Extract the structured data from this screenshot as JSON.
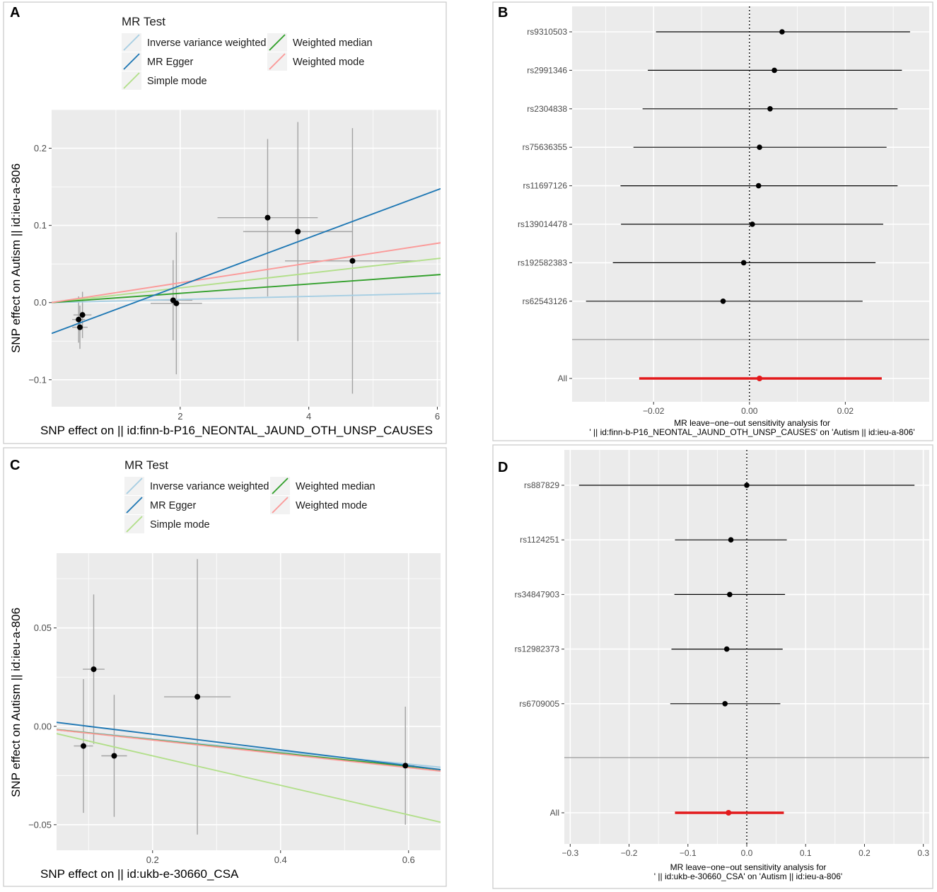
{
  "chart_data": [
    {
      "panel": "A",
      "type": "scatter",
      "legend_title": "MR Test",
      "legend": [
        {
          "name": "Inverse variance weighted",
          "color": "#a6cee3"
        },
        {
          "name": "MR Egger",
          "color": "#1f78b4"
        },
        {
          "name": "Simple mode",
          "color": "#b2df8a"
        },
        {
          "name": "Weighted median",
          "color": "#33a02c"
        },
        {
          "name": "Weighted mode",
          "color": "#fb9a99"
        }
      ],
      "xlabel": "SNP effect on  || id:finn-b-P16_NEONTAL_JAUND_OTH_UNSP_CAUSES",
      "ylabel": "SNP effect on Autism || id:ieu-a-806",
      "xlim": [
        0,
        6.05
      ],
      "ylim": [
        -0.135,
        0.25
      ],
      "xticks": [
        2,
        4,
        6
      ],
      "yticks": [
        -0.1,
        0.0,
        0.1,
        0.2
      ],
      "xtick_labels": [
        "2",
        "4",
        "6"
      ],
      "ytick_labels": [
        "−0.1",
        "0.0",
        "0.1",
        "0.2"
      ],
      "points": [
        {
          "x": 0.42,
          "y": -0.022,
          "xerr": 0.1,
          "yerr": 0.03
        },
        {
          "x": 0.48,
          "y": -0.016,
          "xerr": 0.14,
          "yerr": 0.03
        },
        {
          "x": 0.44,
          "y": -0.032,
          "xerr": 0.12,
          "yerr": 0.028
        },
        {
          "x": 1.89,
          "y": 0.003,
          "xerr": 0.3,
          "yerr": 0.052
        },
        {
          "x": 1.94,
          "y": -0.001,
          "xerr": 0.4,
          "yerr": 0.092
        },
        {
          "x": 3.36,
          "y": 0.11,
          "xerr": 0.78,
          "yerr": 0.102
        },
        {
          "x": 3.83,
          "y": 0.092,
          "xerr": 0.85,
          "yerr": 0.142
        },
        {
          "x": 4.68,
          "y": 0.054,
          "xerr": 1.05,
          "yerr": 0.172
        }
      ],
      "lines": [
        {
          "name": "Inverse variance weighted",
          "intercept": 0.0,
          "slope": 0.002
        },
        {
          "name": "MR Egger",
          "intercept": -0.04,
          "slope": 0.031
        },
        {
          "name": "Simple mode",
          "intercept": 0.0,
          "slope": 0.0095
        },
        {
          "name": "Weighted median",
          "intercept": 0.0,
          "slope": 0.006
        },
        {
          "name": "Weighted mode",
          "intercept": 0.0,
          "slope": 0.0128
        }
      ]
    },
    {
      "panel": "B",
      "type": "forest",
      "title": "MR leave−one−out sensitivity analysis for\n' || id:finn-b-P16_NEONTAL_JAUND_OTH_UNSP_CAUSES' on 'Autism || id:ieu-a-806'",
      "xlim": [
        -0.037,
        0.0375
      ],
      "xticks": [
        -0.02,
        0.0,
        0.02
      ],
      "xtick_labels": [
        "−0.02",
        "0.00",
        "0.02"
      ],
      "snps": [
        "rs9310503",
        "rs2991346",
        "rs2304838",
        "rs75636355",
        "rs11697126",
        "rs139014478",
        "rs192582383",
        "rs62543126"
      ],
      "estimates": [
        0.0068,
        0.0052,
        0.0043,
        0.0021,
        0.0019,
        0.0006,
        -0.0012,
        -0.0055
      ],
      "lower": [
        -0.0195,
        -0.0212,
        -0.0223,
        -0.0242,
        -0.0269,
        -0.0268,
        -0.0285,
        -0.0341
      ],
      "upper": [
        0.0335,
        0.0318,
        0.0309,
        0.0286,
        0.0309,
        0.0279,
        0.0263,
        0.0236
      ],
      "overall": {
        "label": "All",
        "estimate": 0.0021,
        "lower": -0.023,
        "upper": 0.0276,
        "color": "#e31a1c"
      }
    },
    {
      "panel": "C",
      "type": "scatter",
      "legend_title": "MR Test",
      "legend": [
        {
          "name": "Inverse variance weighted",
          "color": "#a6cee3"
        },
        {
          "name": "MR Egger",
          "color": "#1f78b4"
        },
        {
          "name": "Simple mode",
          "color": "#b2df8a"
        },
        {
          "name": "Weighted median",
          "color": "#33a02c"
        },
        {
          "name": "Weighted mode",
          "color": "#fb9a99"
        }
      ],
      "xlabel": "SNP effect on  || id:ukb-e-30660_CSA",
      "ylabel": "SNP effect on Autism || id:ieu-a-806",
      "xlim": [
        0.05,
        0.65
      ],
      "ylim": [
        -0.063,
        0.088
      ],
      "xticks": [
        0.2,
        0.4,
        0.6
      ],
      "yticks": [
        -0.05,
        0.0,
        0.05
      ],
      "xtick_labels": [
        "0.2",
        "0.4",
        "0.6"
      ],
      "ytick_labels": [
        "−0.05",
        "0.00",
        "0.05"
      ],
      "points": [
        {
          "x": 0.108,
          "y": 0.029,
          "xerr": 0.017,
          "yerr": 0.038
        },
        {
          "x": 0.092,
          "y": -0.01,
          "xerr": 0.015,
          "yerr": 0.034
        },
        {
          "x": 0.14,
          "y": -0.015,
          "xerr": 0.02,
          "yerr": 0.031
        },
        {
          "x": 0.27,
          "y": 0.015,
          "xerr": 0.052,
          "yerr": 0.07
        },
        {
          "x": 0.595,
          "y": -0.02,
          "xerr": 0.014,
          "yerr": 0.03
        }
      ],
      "lines": [
        {
          "name": "Inverse variance weighted",
          "intercept": 0.0,
          "slope": -0.032
        },
        {
          "name": "MR Egger",
          "intercept": 0.004,
          "slope": -0.04
        },
        {
          "name": "Simple mode",
          "intercept": 0.0,
          "slope": -0.075
        },
        {
          "name": "Weighted median",
          "intercept": 0.0,
          "slope": -0.034
        },
        {
          "name": "Weighted mode",
          "intercept": 0.0,
          "slope": -0.035
        }
      ]
    },
    {
      "panel": "D",
      "type": "forest",
      "title": "MR leave−one−out sensitivity analysis for\n' || id:ukb-e-30660_CSA' on 'Autism || id:ieu-a-806'",
      "xlim": [
        -0.31,
        0.31
      ],
      "xticks": [
        -0.3,
        -0.2,
        -0.1,
        0.0,
        0.1,
        0.2,
        0.3
      ],
      "xtick_labels": [
        "−0.3",
        "−0.2",
        "−0.1",
        "0.0",
        "0.1",
        "0.2",
        "0.3"
      ],
      "snps": [
        "rs887829",
        "rs1124251",
        "rs34847903",
        "rs12982373",
        "rs6709005"
      ],
      "estimates": [
        0.0,
        -0.027,
        -0.029,
        -0.034,
        -0.037
      ],
      "lower": [
        -0.285,
        -0.122,
        -0.123,
        -0.128,
        -0.13
      ],
      "upper": [
        0.285,
        0.068,
        0.065,
        0.061,
        0.057
      ],
      "overall": {
        "label": "All",
        "estimate": -0.031,
        "lower": -0.122,
        "upper": 0.063,
        "color": "#e31a1c"
      }
    }
  ]
}
